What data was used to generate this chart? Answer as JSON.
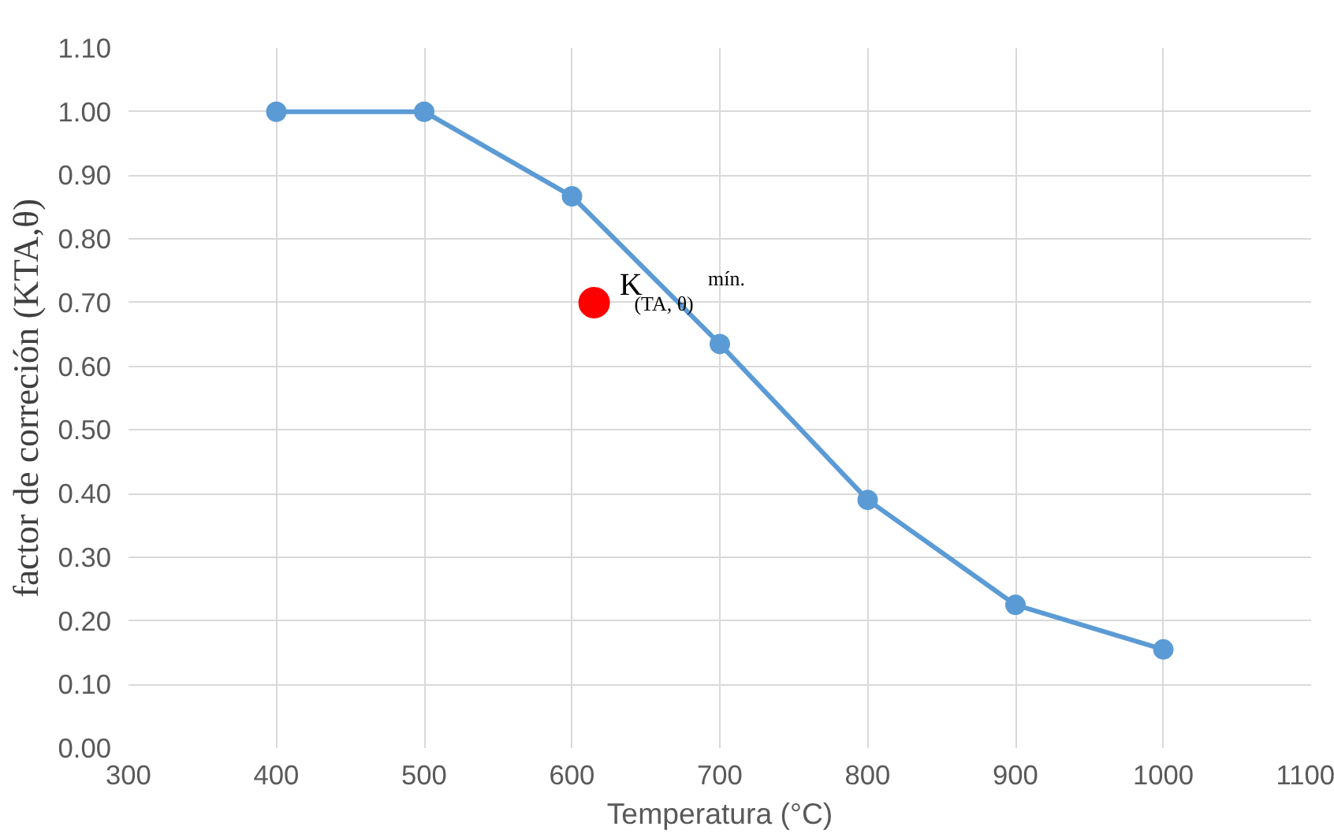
{
  "chart_data": {
    "type": "line",
    "xlabel": "Temperatura (°C)",
    "ylabel": "factor de correción (KTA,θ)",
    "series": [
      {
        "color": "#5b9bd5",
        "x": [
          400,
          500,
          600,
          700,
          800,
          900,
          1000
        ],
        "values": [
          1.0,
          1.0,
          0.867,
          0.635,
          0.39,
          0.225,
          0.155
        ]
      },
      {
        "type": "scatter",
        "color": "#ff0000",
        "x": [
          615
        ],
        "values": [
          0.7
        ]
      }
    ],
    "annotations": [
      {
        "text": "K$_{(TA, θ)}$ $^{mín.}$",
        "x": 615,
        "y": 0.7
      }
    ],
    "xlim": [
      300,
      1100
    ],
    "xticks": [
      300,
      400,
      500,
      600,
      700,
      800,
      900,
      1000,
      1100
    ],
    "ylim": [
      0,
      1.1
    ],
    "yticks": [
      {
        "value": 0,
        "label": "0.00"
      },
      {
        "value": 0.1,
        "label": "0.10"
      },
      {
        "value": 0.2,
        "label": "0.20"
      },
      {
        "value": 0.3,
        "label": "0.30"
      },
      {
        "value": 0.4,
        "label": "0.40"
      },
      {
        "value": 0.5,
        "label": "0.50"
      },
      {
        "value": 0.6,
        "label": "0.60"
      },
      {
        "value": 0.7,
        "label": "0.70"
      },
      {
        "value": 0.8,
        "label": "0.80"
      },
      {
        "value": 0.9,
        "label": "0.90"
      },
      {
        "value": 1.0,
        "label": "1.00"
      },
      {
        "value": 1.1,
        "label": "1.10"
      }
    ],
    "grid": true,
    "marker": "circle",
    "line_style": "solid"
  }
}
